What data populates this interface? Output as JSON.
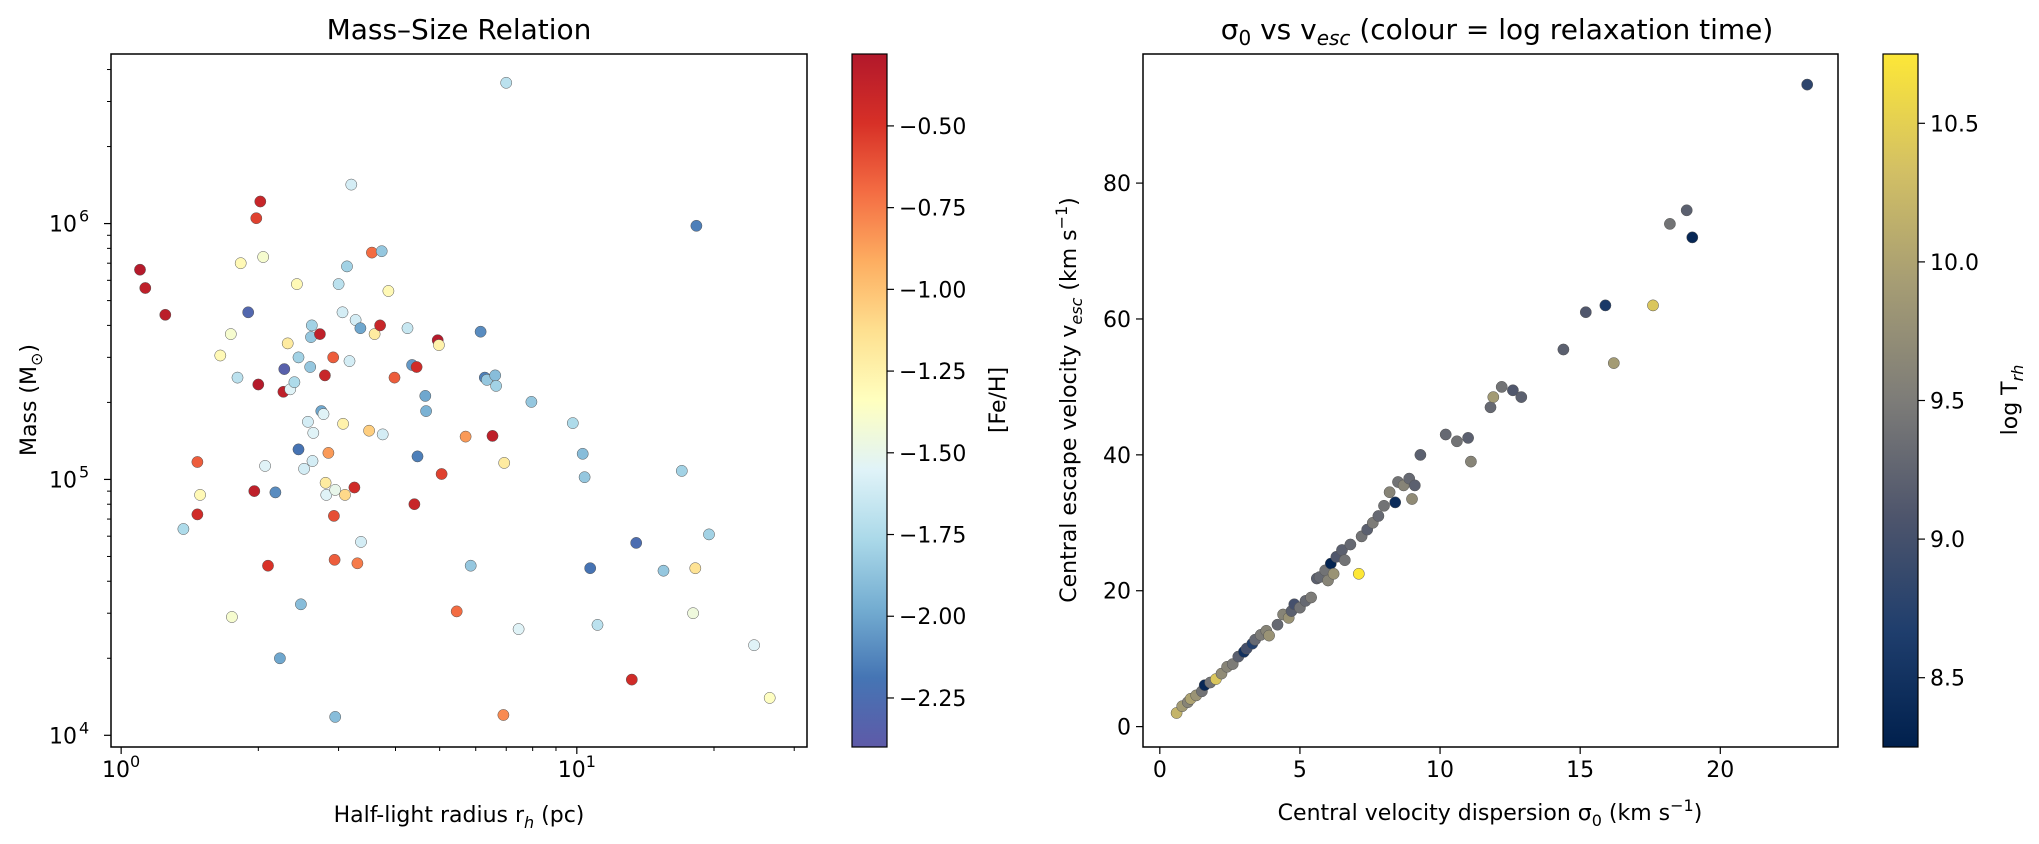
{
  "chart_data": [
    {
      "type": "scatter",
      "title": "Mass–Size Relation",
      "xlabel": "Half-light radius r_h (pc)",
      "ylabel": "Mass (M_⊙)",
      "xscale": "log",
      "yscale": "log",
      "xlim": [
        0.95,
        32
      ],
      "ylim": [
        9000,
        4600000
      ],
      "xticks": [
        {
          "value": 1,
          "mant": "10",
          "exp": "0"
        },
        {
          "value": 10,
          "mant": "10",
          "exp": "1"
        }
      ],
      "yticks": [
        {
          "value": 10000,
          "mant": "10",
          "exp": "4"
        },
        {
          "value": 100000,
          "mant": "10",
          "exp": "5"
        },
        {
          "value": 1000000,
          "mant": "10",
          "exp": "6"
        }
      ],
      "colorbar": {
        "label": "[Fe/H]",
        "cmap": "RdYlBu",
        "min": -2.4,
        "max": -0.28,
        "ticks": [
          -0.5,
          -0.75,
          -1.0,
          -1.25,
          -1.5,
          -1.75,
          -2.0,
          -2.25
        ],
        "tick_labels": [
          "−0.50",
          "−0.75",
          "−1.00",
          "−1.25",
          "−1.50",
          "−1.75",
          "−2.00",
          "−2.25"
        ],
        "colors": [
          "#5e5aa8",
          "#4575b4",
          "#74add1",
          "#abd9e9",
          "#e0f3f8",
          "#ffffbf",
          "#fee090",
          "#fdae61",
          "#f46d43",
          "#d73027",
          "#b2182b"
        ]
      },
      "grid": false,
      "points": [
        {
          "x": 1.1,
          "y": 660000,
          "c": -0.3
        },
        {
          "x": 1.13,
          "y": 560000,
          "c": -0.35
        },
        {
          "x": 1.25,
          "y": 440000,
          "c": -0.33
        },
        {
          "x": 1.37,
          "y": 64000,
          "c": -1.75
        },
        {
          "x": 1.47,
          "y": 117000,
          "c": -0.65
        },
        {
          "x": 1.47,
          "y": 73000,
          "c": -0.45
        },
        {
          "x": 1.49,
          "y": 87000,
          "c": -1.3
        },
        {
          "x": 1.65,
          "y": 305000,
          "c": -1.3
        },
        {
          "x": 1.74,
          "y": 370000,
          "c": -1.4
        },
        {
          "x": 1.75,
          "y": 29000,
          "c": -1.4
        },
        {
          "x": 1.8,
          "y": 250000,
          "c": -1.7
        },
        {
          "x": 1.83,
          "y": 700000,
          "c": -1.3
        },
        {
          "x": 1.9,
          "y": 450000,
          "c": -2.3
        },
        {
          "x": 1.96,
          "y": 90000,
          "c": -0.35
        },
        {
          "x": 1.98,
          "y": 1050000,
          "c": -0.55
        },
        {
          "x": 2.0,
          "y": 235000,
          "c": -0.3
        },
        {
          "x": 2.02,
          "y": 1220000,
          "c": -0.4
        },
        {
          "x": 2.05,
          "y": 740000,
          "c": -1.4
        },
        {
          "x": 2.07,
          "y": 113000,
          "c": -1.55
        },
        {
          "x": 2.1,
          "y": 46000,
          "c": -0.5
        },
        {
          "x": 2.18,
          "y": 89000,
          "c": -2.1
        },
        {
          "x": 2.23,
          "y": 20000,
          "c": -2.0
        },
        {
          "x": 2.27,
          "y": 220000,
          "c": -0.35
        },
        {
          "x": 2.28,
          "y": 270000,
          "c": -2.35
        },
        {
          "x": 2.32,
          "y": 340000,
          "c": -1.2
        },
        {
          "x": 2.35,
          "y": 225000,
          "c": -1.55
        },
        {
          "x": 2.4,
          "y": 240000,
          "c": -1.75
        },
        {
          "x": 2.43,
          "y": 580000,
          "c": -1.3
        },
        {
          "x": 2.45,
          "y": 300000,
          "c": -1.8
        },
        {
          "x": 2.45,
          "y": 131000,
          "c": -2.2
        },
        {
          "x": 2.48,
          "y": 32500,
          "c": -1.9
        },
        {
          "x": 2.52,
          "y": 110000,
          "c": -1.6
        },
        {
          "x": 2.57,
          "y": 168000,
          "c": -1.6
        },
        {
          "x": 2.6,
          "y": 275000,
          "c": -1.85
        },
        {
          "x": 2.61,
          "y": 360000,
          "c": -1.85
        },
        {
          "x": 2.62,
          "y": 400000,
          "c": -1.8
        },
        {
          "x": 2.63,
          "y": 118000,
          "c": -1.6
        },
        {
          "x": 2.64,
          "y": 152000,
          "c": -1.55
        },
        {
          "x": 2.73,
          "y": 370000,
          "c": -0.35
        },
        {
          "x": 2.75,
          "y": 185000,
          "c": -2.0
        },
        {
          "x": 2.78,
          "y": 180000,
          "c": -1.55
        },
        {
          "x": 2.8,
          "y": 255000,
          "c": -0.4
        },
        {
          "x": 2.81,
          "y": 97000,
          "c": -1.2
        },
        {
          "x": 2.82,
          "y": 87000,
          "c": -1.55
        },
        {
          "x": 2.85,
          "y": 127000,
          "c": -0.85
        },
        {
          "x": 2.92,
          "y": 300000,
          "c": -0.65
        },
        {
          "x": 2.93,
          "y": 72000,
          "c": -0.6
        },
        {
          "x": 2.94,
          "y": 48500,
          "c": -0.65
        },
        {
          "x": 2.95,
          "y": 91000,
          "c": -1.5
        },
        {
          "x": 2.95,
          "y": 11800,
          "c": -1.9
        },
        {
          "x": 3.0,
          "y": 580000,
          "c": -1.7
        },
        {
          "x": 3.06,
          "y": 450000,
          "c": -1.6
        },
        {
          "x": 3.07,
          "y": 165000,
          "c": -1.25
        },
        {
          "x": 3.1,
          "y": 87000,
          "c": -1.1
        },
        {
          "x": 3.13,
          "y": 680000,
          "c": -1.8
        },
        {
          "x": 3.17,
          "y": 290000,
          "c": -1.6
        },
        {
          "x": 3.2,
          "y": 1420000,
          "c": -1.6
        },
        {
          "x": 3.25,
          "y": 93000,
          "c": -0.45
        },
        {
          "x": 3.27,
          "y": 420000,
          "c": -1.6
        },
        {
          "x": 3.3,
          "y": 47000,
          "c": -0.75
        },
        {
          "x": 3.35,
          "y": 390000,
          "c": -2.0
        },
        {
          "x": 3.36,
          "y": 57000,
          "c": -1.6
        },
        {
          "x": 3.5,
          "y": 155000,
          "c": -1.05
        },
        {
          "x": 3.55,
          "y": 770000,
          "c": -0.7
        },
        {
          "x": 3.6,
          "y": 370000,
          "c": -1.2
        },
        {
          "x": 3.7,
          "y": 400000,
          "c": -0.4
        },
        {
          "x": 3.73,
          "y": 780000,
          "c": -1.85
        },
        {
          "x": 3.75,
          "y": 150000,
          "c": -1.6
        },
        {
          "x": 3.86,
          "y": 545000,
          "c": -1.3
        },
        {
          "x": 3.98,
          "y": 250000,
          "c": -0.65
        },
        {
          "x": 4.25,
          "y": 390000,
          "c": -1.65
        },
        {
          "x": 4.35,
          "y": 280000,
          "c": -2.05
        },
        {
          "x": 4.4,
          "y": 80000,
          "c": -0.4
        },
        {
          "x": 4.45,
          "y": 275000,
          "c": -0.45
        },
        {
          "x": 4.47,
          "y": 123000,
          "c": -2.15
        },
        {
          "x": 4.65,
          "y": 212000,
          "c": -2.0
        },
        {
          "x": 4.67,
          "y": 185000,
          "c": -1.95
        },
        {
          "x": 4.95,
          "y": 350000,
          "c": -0.3
        },
        {
          "x": 4.98,
          "y": 335000,
          "c": -1.25
        },
        {
          "x": 5.05,
          "y": 105000,
          "c": -0.55
        },
        {
          "x": 5.45,
          "y": 30500,
          "c": -0.7
        },
        {
          "x": 5.7,
          "y": 147000,
          "c": -0.85
        },
        {
          "x": 5.85,
          "y": 46000,
          "c": -1.85
        },
        {
          "x": 6.15,
          "y": 378000,
          "c": -2.1
        },
        {
          "x": 6.28,
          "y": 250000,
          "c": -2.15
        },
        {
          "x": 6.35,
          "y": 245000,
          "c": -1.85
        },
        {
          "x": 6.53,
          "y": 148000,
          "c": -0.35
        },
        {
          "x": 6.62,
          "y": 255000,
          "c": -1.9
        },
        {
          "x": 6.65,
          "y": 232000,
          "c": -1.8
        },
        {
          "x": 6.9,
          "y": 12000,
          "c": -0.8
        },
        {
          "x": 6.93,
          "y": 116000,
          "c": -1.2
        },
        {
          "x": 7.0,
          "y": 3550000,
          "c": -1.7
        },
        {
          "x": 7.45,
          "y": 26000,
          "c": -1.55
        },
        {
          "x": 7.95,
          "y": 201000,
          "c": -1.85
        },
        {
          "x": 9.8,
          "y": 166000,
          "c": -1.75
        },
        {
          "x": 10.3,
          "y": 126000,
          "c": -1.9
        },
        {
          "x": 10.4,
          "y": 102000,
          "c": -1.85
        },
        {
          "x": 10.7,
          "y": 45000,
          "c": -2.2
        },
        {
          "x": 11.1,
          "y": 27000,
          "c": -1.7
        },
        {
          "x": 13.2,
          "y": 16500,
          "c": -0.45
        },
        {
          "x": 13.5,
          "y": 56500,
          "c": -2.25
        },
        {
          "x": 15.5,
          "y": 44000,
          "c": -1.85
        },
        {
          "x": 17.0,
          "y": 108000,
          "c": -1.8
        },
        {
          "x": 18.0,
          "y": 30000,
          "c": -1.45
        },
        {
          "x": 18.2,
          "y": 45000,
          "c": -1.15
        },
        {
          "x": 18.3,
          "y": 980000,
          "c": -2.15
        },
        {
          "x": 19.5,
          "y": 61000,
          "c": -1.8
        },
        {
          "x": 24.5,
          "y": 22500,
          "c": -1.55
        },
        {
          "x": 26.5,
          "y": 14000,
          "c": -1.35
        }
      ]
    },
    {
      "type": "scatter",
      "title": "σ_0 vs v_esc (colour = log relaxation time)",
      "xlabel": "Central velocity dispersion σ_0 (km s^−1)",
      "ylabel": "Central escape velocity v_esc (km s^−1)",
      "xscale": "linear",
      "yscale": "linear",
      "xlim": [
        -0.6,
        24.2
      ],
      "ylim": [
        -3,
        99
      ],
      "xticks": [
        0,
        5,
        10,
        15,
        20
      ],
      "yticks": [
        0,
        20,
        40,
        60,
        80
      ],
      "colorbar": {
        "label": "log T_rh",
        "cmap": "cividis",
        "min": 8.25,
        "max": 10.75,
        "ticks": [
          8.5,
          9.0,
          9.5,
          10.0,
          10.5
        ],
        "tick_labels": [
          "8.5",
          "9.0",
          "9.5",
          "10.0",
          "10.5"
        ],
        "colors": [
          "#00204d",
          "#1f3e6d",
          "#4e556c",
          "#7d7c78",
          "#a59c74",
          "#d3c064",
          "#fde737"
        ]
      },
      "grid": false,
      "points": [
        {
          "x": 0.6,
          "y": 2.0,
          "c": 10.2
        },
        {
          "x": 0.8,
          "y": 3.0,
          "c": 9.9
        },
        {
          "x": 1.0,
          "y": 3.6,
          "c": 9.6
        },
        {
          "x": 1.1,
          "y": 4.1,
          "c": 10.0
        },
        {
          "x": 1.3,
          "y": 4.6,
          "c": 9.8
        },
        {
          "x": 1.5,
          "y": 5.2,
          "c": 9.4
        },
        {
          "x": 1.6,
          "y": 6.1,
          "c": 8.35
        },
        {
          "x": 1.8,
          "y": 6.5,
          "c": 9.4
        },
        {
          "x": 2.0,
          "y": 7.0,
          "c": 10.4
        },
        {
          "x": 2.2,
          "y": 7.8,
          "c": 9.7
        },
        {
          "x": 2.4,
          "y": 8.8,
          "c": 9.6
        },
        {
          "x": 2.6,
          "y": 9.2,
          "c": 9.5
        },
        {
          "x": 2.8,
          "y": 10.3,
          "c": 9.2
        },
        {
          "x": 3.0,
          "y": 11.0,
          "c": 8.5
        },
        {
          "x": 3.1,
          "y": 11.5,
          "c": 9.0
        },
        {
          "x": 3.3,
          "y": 12.2,
          "c": 8.7
        },
        {
          "x": 3.4,
          "y": 12.8,
          "c": 9.3
        },
        {
          "x": 3.6,
          "y": 13.5,
          "c": 9.5
        },
        {
          "x": 3.8,
          "y": 14.1,
          "c": 9.6
        },
        {
          "x": 3.9,
          "y": 13.4,
          "c": 9.8
        },
        {
          "x": 4.2,
          "y": 15.0,
          "c": 9.3
        },
        {
          "x": 4.4,
          "y": 16.5,
          "c": 9.6
        },
        {
          "x": 4.6,
          "y": 16.0,
          "c": 9.8
        },
        {
          "x": 4.7,
          "y": 17.0,
          "c": 9.2
        },
        {
          "x": 4.8,
          "y": 18.0,
          "c": 9.0
        },
        {
          "x": 5.0,
          "y": 17.5,
          "c": 9.4
        },
        {
          "x": 5.2,
          "y": 18.5,
          "c": 9.3
        },
        {
          "x": 5.4,
          "y": 19.0,
          "c": 9.5
        },
        {
          "x": 5.6,
          "y": 21.8,
          "c": 9.2
        },
        {
          "x": 5.7,
          "y": 22.0,
          "c": 9.3
        },
        {
          "x": 5.9,
          "y": 23.0,
          "c": 9.4
        },
        {
          "x": 6.0,
          "y": 21.5,
          "c": 9.6
        },
        {
          "x": 6.1,
          "y": 24.0,
          "c": 8.3
        },
        {
          "x": 6.2,
          "y": 22.5,
          "c": 9.8
        },
        {
          "x": 6.3,
          "y": 25.0,
          "c": 9.1
        },
        {
          "x": 6.5,
          "y": 26.0,
          "c": 9.2
        },
        {
          "x": 6.6,
          "y": 24.5,
          "c": 9.4
        },
        {
          "x": 6.8,
          "y": 26.8,
          "c": 9.3
        },
        {
          "x": 7.1,
          "y": 22.5,
          "c": 10.8
        },
        {
          "x": 7.2,
          "y": 28.0,
          "c": 9.4
        },
        {
          "x": 7.4,
          "y": 29.0,
          "c": 9.2
        },
        {
          "x": 7.6,
          "y": 30.0,
          "c": 9.5
        },
        {
          "x": 7.8,
          "y": 31.0,
          "c": 9.3
        },
        {
          "x": 8.0,
          "y": 32.5,
          "c": 9.4
        },
        {
          "x": 8.2,
          "y": 34.5,
          "c": 9.6
        },
        {
          "x": 8.4,
          "y": 33.0,
          "c": 8.4
        },
        {
          "x": 8.5,
          "y": 36.0,
          "c": 9.4
        },
        {
          "x": 8.7,
          "y": 35.5,
          "c": 9.6
        },
        {
          "x": 8.9,
          "y": 36.5,
          "c": 9.3
        },
        {
          "x": 9.0,
          "y": 33.5,
          "c": 9.7
        },
        {
          "x": 9.1,
          "y": 35.5,
          "c": 9.2
        },
        {
          "x": 9.3,
          "y": 40.0,
          "c": 9.2
        },
        {
          "x": 10.2,
          "y": 43.0,
          "c": 9.3
        },
        {
          "x": 10.6,
          "y": 42.0,
          "c": 9.4
        },
        {
          "x": 11.0,
          "y": 42.5,
          "c": 9.2
        },
        {
          "x": 11.1,
          "y": 39.0,
          "c": 9.6
        },
        {
          "x": 11.8,
          "y": 47.0,
          "c": 9.3
        },
        {
          "x": 11.9,
          "y": 48.5,
          "c": 9.9
        },
        {
          "x": 12.2,
          "y": 50.0,
          "c": 9.4
        },
        {
          "x": 12.6,
          "y": 49.5,
          "c": 9.1
        },
        {
          "x": 12.9,
          "y": 48.5,
          "c": 9.2
        },
        {
          "x": 14.4,
          "y": 55.5,
          "c": 9.2
        },
        {
          "x": 15.2,
          "y": 61.0,
          "c": 9.1
        },
        {
          "x": 15.9,
          "y": 62.0,
          "c": 8.6
        },
        {
          "x": 16.2,
          "y": 53.5,
          "c": 9.9
        },
        {
          "x": 17.6,
          "y": 62.0,
          "c": 10.4
        },
        {
          "x": 18.2,
          "y": 74.0,
          "c": 9.4
        },
        {
          "x": 18.8,
          "y": 76.0,
          "c": 9.2
        },
        {
          "x": 19.0,
          "y": 72.0,
          "c": 8.35
        },
        {
          "x": 23.1,
          "y": 94.5,
          "c": 8.8
        }
      ]
    }
  ]
}
